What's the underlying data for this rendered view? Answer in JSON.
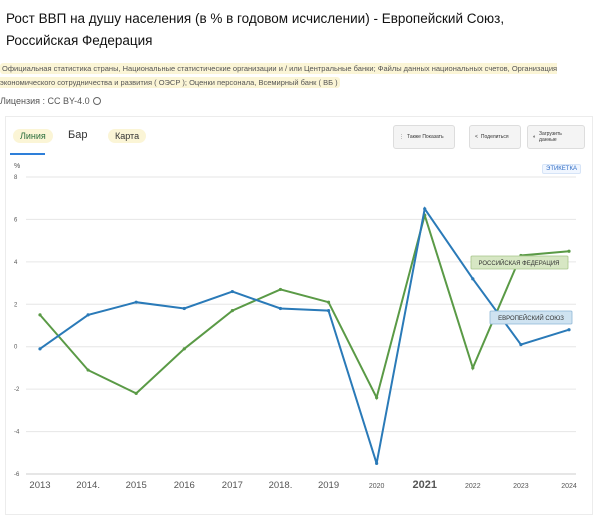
{
  "header": {
    "title": "Рост ВВП на душу населения (в % в годовом исчислении) - Европейский Союз, Российская Федерация",
    "sources": "Официальная статистика страны, Национальные статистические организации и / или Центральные банки; Файлы данных национальных счетов, Организация экономического сотрудничества и развития ( ОЭСР ); Оценки персонала, Всемирный банк ( ВБ )",
    "license": "Лицензия : CC BY-4.0"
  },
  "tabs": {
    "line": "Линия",
    "bar": "Бар",
    "map": "Карта"
  },
  "toolbar": {
    "more": "Также Показать",
    "share": "Поделиться",
    "download": "Загрузить данные"
  },
  "badge": "ЭТИКЕТКА",
  "colors": {
    "eu": "#2a7ab8",
    "ru": "#5a9a46",
    "grid": "#e6e6e6",
    "axis": "#5a5a5a"
  },
  "chart_data": {
    "type": "line",
    "ylabel": "%",
    "xlabel": "",
    "x": [
      "2013",
      "2014.",
      "2015",
      "2016",
      "2017",
      "2018.",
      "2019",
      "2020",
      "2021",
      "2022",
      "2023",
      "2024"
    ],
    "ylim": [
      -6,
      8
    ],
    "yticks": [
      8,
      6,
      4,
      2,
      0,
      -2,
      -4,
      -6
    ],
    "grid": true,
    "series": [
      {
        "name": "РОССИЙСКАЯ ФЕДЕРАЦИЯ",
        "values": [
          1.5,
          -1.1,
          -2.2,
          -0.1,
          1.7,
          2.7,
          2.1,
          -2.4,
          6.2,
          -1.0,
          4.3,
          4.5
        ]
      },
      {
        "name": "ЕВРОПЕЙСКИЙ СОЮЗ",
        "values": [
          -0.1,
          1.5,
          2.1,
          1.8,
          2.6,
          1.8,
          1.7,
          -5.5,
          6.5,
          3.2,
          0.1,
          0.8
        ]
      }
    ]
  }
}
